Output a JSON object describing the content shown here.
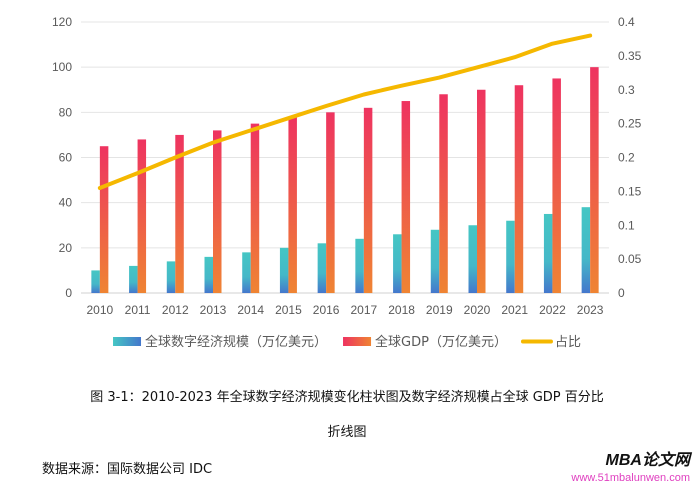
{
  "chart_data": {
    "type": "bar",
    "categories": [
      "2010",
      "2011",
      "2012",
      "2013",
      "2014",
      "2015",
      "2016",
      "2017",
      "2018",
      "2019",
      "2020",
      "2021",
      "2022",
      "2023"
    ],
    "series": [
      {
        "name": "全球数字经济规模（万亿美元）",
        "type": "bar",
        "axis": "left",
        "values": [
          10,
          12,
          14,
          16,
          18,
          20,
          22,
          24,
          26,
          28,
          30,
          32,
          35,
          38
        ],
        "color": "#45c6c4",
        "color2": "#4477cc"
      },
      {
        "name": "全球GDP（万亿美元）",
        "type": "bar",
        "axis": "left",
        "values": [
          65,
          68,
          70,
          72,
          75,
          78,
          80,
          82,
          85,
          88,
          90,
          92,
          95,
          100
        ],
        "color": "#ee3360",
        "color2": "#ef8433"
      },
      {
        "name": "占比",
        "type": "line",
        "axis": "right",
        "values": [
          0.155,
          0.177,
          0.2,
          0.222,
          0.24,
          0.258,
          0.276,
          0.293,
          0.306,
          0.318,
          0.333,
          0.348,
          0.368,
          0.38
        ],
        "color": "#f5b800"
      }
    ],
    "ylim": [
      0,
      120
    ],
    "yticks": [
      "0",
      "20",
      "40",
      "60",
      "80",
      "100",
      "120"
    ],
    "y2lim": [
      0,
      0.4
    ],
    "y2ticks": [
      "0",
      "0.05",
      "0.1",
      "0.15",
      "0.2",
      "0.25",
      "0.3",
      "0.35",
      "0.4"
    ],
    "grid": true,
    "legend": "bottom"
  },
  "caption": {
    "line1": "图 3-1：2010-2023 年全球数字经济规模变化柱状图及数字经济规模占全球 GDP 百分比",
    "line2": "折线图"
  },
  "source": "数据来源：国际数据公司 IDC",
  "watermark": {
    "title": "MBA论文网",
    "url": "www.51mbalunwen.com"
  }
}
